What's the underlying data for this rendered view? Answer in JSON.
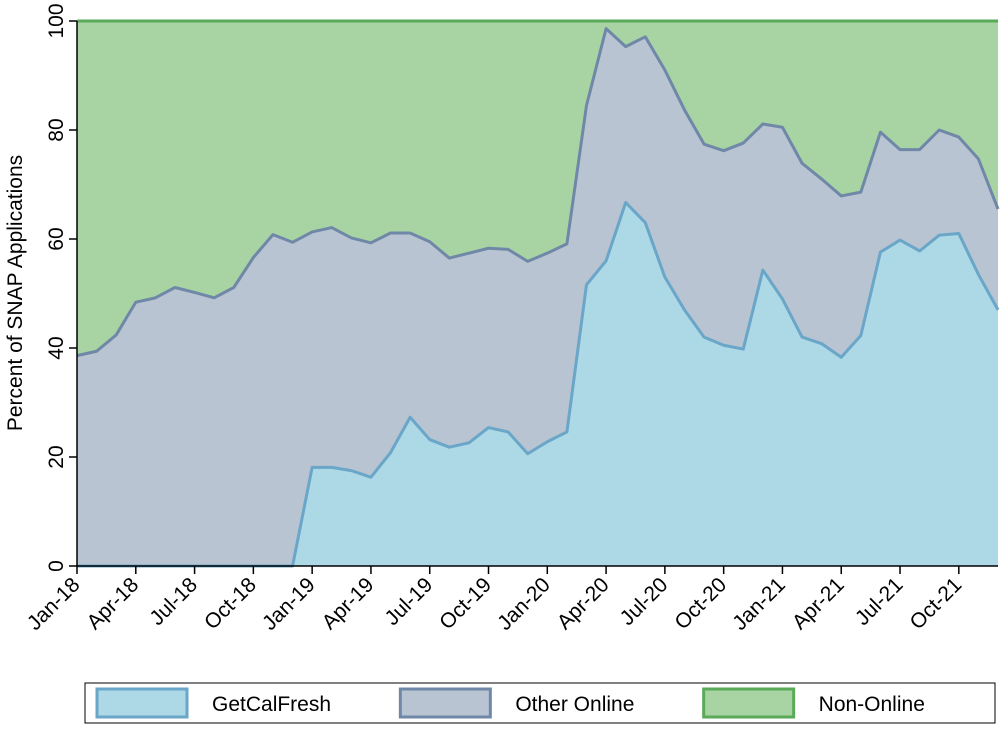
{
  "chart_data": {
    "type": "stacked_area",
    "y_label": "Percent of SNAP Applications",
    "categories": [
      "Jan-18",
      null,
      null,
      "Apr-18",
      null,
      null,
      "Jul-18",
      null,
      null,
      "Oct-18",
      null,
      null,
      "Jan-19",
      null,
      null,
      "Apr-19",
      null,
      null,
      "Jul-19",
      null,
      null,
      "Oct-19",
      null,
      null,
      "Jan-20",
      null,
      null,
      "Apr-20",
      null,
      null,
      "Jul-20",
      null,
      null,
      "Oct-20",
      null,
      null,
      "Jan-21",
      null,
      null,
      "Apr-21",
      null,
      null,
      "Jul-21",
      null,
      null,
      "Oct-21",
      null,
      null
    ],
    "series": [
      {
        "name": "GetCalFresh",
        "color": "#add8e6",
        "line_color": "#6aa6c8",
        "values": [
          0,
          0,
          0,
          0,
          0,
          0,
          0,
          0,
          0,
          0,
          0,
          0,
          18.1,
          18.1,
          17.5,
          16.3,
          20.8,
          27.3,
          23.2,
          21.8,
          22.6,
          25.4,
          24.6,
          20.6,
          22.8,
          24.6,
          51.6,
          56,
          66.7,
          63,
          53,
          47,
          42,
          40.5,
          39.8,
          54.3,
          49,
          42,
          40.8,
          38.3,
          42.3,
          57.6,
          59.8,
          57.8,
          60.7,
          61,
          53.5,
          47
        ]
      },
      {
        "name": "Other Online",
        "color": "#b8c4d2",
        "line_color": "#7088a8",
        "values": [
          38.6,
          39.4,
          42.4,
          48.4,
          49.2,
          51.1,
          50.2,
          49.2,
          51.1,
          56.6,
          60.8,
          59.4,
          43.2,
          44,
          42.7,
          43,
          40.3,
          33.8,
          36.3,
          34.7,
          34.8,
          32.9,
          33.5,
          35.3,
          34.6,
          34.5,
          32.9,
          42.6,
          28.6,
          34.1,
          38,
          36.7,
          35.4,
          35.7,
          37.8,
          26.8,
          31.5,
          31.9,
          30.2,
          29.6,
          26.3,
          22,
          16.6,
          18.6,
          19.3,
          17.7,
          21.2,
          18.5
        ]
      },
      {
        "name": "Non-Online",
        "color": "#a8d4a4",
        "line_color": "#5aaa5a",
        "values": [
          61.4,
          60.6,
          57.6,
          51.6,
          50.8,
          48.9,
          49.8,
          50.8,
          48.9,
          43.4,
          39.2,
          40.6,
          38.7,
          37.9,
          39.8,
          40.7,
          38.9,
          38.9,
          40.5,
          43.5,
          42.6,
          41.7,
          41.9,
          44.1,
          42.6,
          40.9,
          15.5,
          1.4,
          4.7,
          2.9,
          9,
          16.3,
          22.6,
          23.8,
          22.4,
          18.9,
          19.5,
          26.1,
          29,
          32.1,
          31.4,
          20.4,
          23.6,
          23.6,
          20,
          21.3,
          25.3,
          34.5
        ]
      }
    ],
    "ylim": [
      0,
      100
    ],
    "yticks": [
      0,
      20,
      40,
      60,
      80,
      100
    ],
    "legend": "bottom"
  }
}
